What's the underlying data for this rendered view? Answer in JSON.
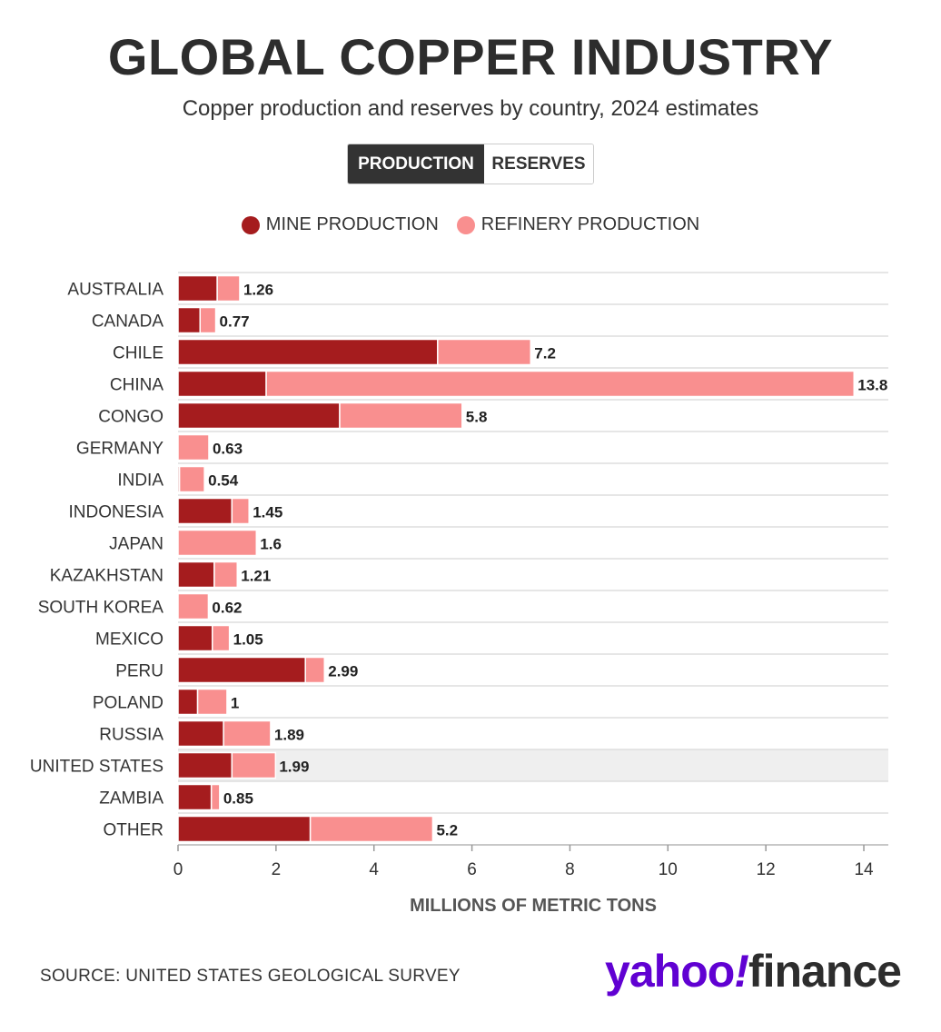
{
  "header": {
    "title": "GLOBAL COPPER INDUSTRY",
    "subtitle": "Copper production and reserves by country, 2024 estimates"
  },
  "toggle": {
    "options": [
      {
        "label": "PRODUCTION",
        "active": true
      },
      {
        "label": "RESERVES",
        "active": false
      }
    ]
  },
  "legend": [
    {
      "label": "MINE PRODUCTION",
      "color": "#a51c1e"
    },
    {
      "label": "REFINERY PRODUCTION",
      "color": "#f98f8f"
    }
  ],
  "chart_data": {
    "type": "bar",
    "orientation": "horizontal",
    "stacked": true,
    "categories": [
      "AUSTRALIA",
      "CANADA",
      "CHILE",
      "CHINA",
      "CONGO",
      "GERMANY",
      "INDIA",
      "INDONESIA",
      "JAPAN",
      "KAZAKHSTAN",
      "SOUTH KOREA",
      "MEXICO",
      "PERU",
      "POLAND",
      "RUSSIA",
      "UNITED STATES",
      "ZAMBIA",
      "OTHER"
    ],
    "series": [
      {
        "name": "MINE PRODUCTION",
        "color": "#a51c1e",
        "values": [
          0.8,
          0.45,
          5.3,
          1.8,
          3.3,
          0,
          0.03,
          1.1,
          0,
          0.74,
          0,
          0.7,
          2.6,
          0.4,
          0.93,
          1.1,
          0.68,
          2.7
        ]
      },
      {
        "name": "REFINERY PRODUCTION",
        "color": "#f98f8f",
        "values": [
          0.46,
          0.32,
          1.9,
          12.0,
          2.5,
          0.63,
          0.51,
          0.35,
          1.6,
          0.47,
          0.62,
          0.35,
          0.39,
          0.6,
          0.96,
          0.89,
          0.17,
          2.5
        ]
      }
    ],
    "totals": [
      "1.26",
      "0.77",
      "7.2",
      "13.8",
      "5.8",
      "0.63",
      "0.54",
      "1.45",
      "1.6",
      "1.21",
      "0.62",
      "1.05",
      "2.99",
      "1",
      "1.89",
      "1.99",
      "0.85",
      "5.2"
    ],
    "xticks": [
      0,
      2,
      4,
      6,
      8,
      10,
      12,
      14
    ],
    "xlim": [
      0,
      14.5
    ],
    "xlabel": "MILLIONS OF METRIC TONS",
    "highlighted_category": "UNITED STATES"
  },
  "footer": {
    "source": "SOURCE: UNITED STATES GEOLOGICAL SURVEY",
    "logo": {
      "yahoo": "yahoo",
      "bang": "!",
      "finance": "finance"
    }
  }
}
